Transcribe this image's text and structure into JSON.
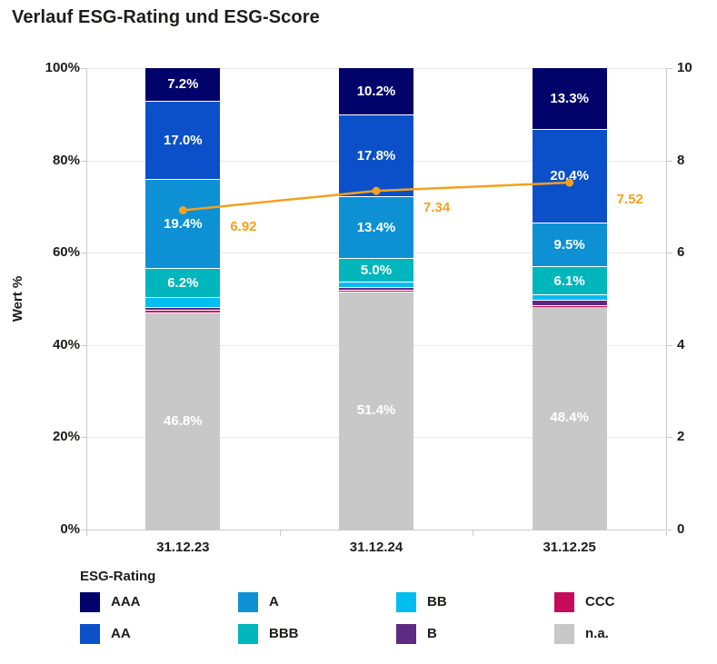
{
  "title": "Verlauf ESG-Rating und ESG-Score",
  "colors": {
    "accent_line": "#f6a01e",
    "grid": "#e8e8e8",
    "axis": "#c9c9c9",
    "text": "#1d1d1b",
    "segment_label": "#ffffff"
  },
  "chart_data": {
    "type": "bar",
    "subtype": "stacked-bars-with-line",
    "title": "Verlauf ESG-Rating und ESG-Score",
    "categories": [
      "31.12.23",
      "31.12.24",
      "31.12.25"
    ],
    "series": [
      {
        "name": "AAA",
        "color": "#02026b",
        "values": [
          7.2,
          10.2,
          13.3
        ]
      },
      {
        "name": "AA",
        "color": "#0b50c8",
        "values": [
          17.0,
          17.8,
          20.4
        ]
      },
      {
        "name": "A",
        "color": "#0e90d4",
        "values": [
          19.4,
          13.4,
          9.5
        ]
      },
      {
        "name": "BBB",
        "color": "#00b6bd",
        "values": [
          6.2,
          5.0,
          6.1
        ]
      },
      {
        "name": "BB",
        "color": "#00bdf2",
        "values": [
          2.2,
          1.2,
          1.0
        ]
      },
      {
        "name": "B",
        "color": "#5e2a84",
        "values": [
          0.6,
          0.6,
          1.2
        ]
      },
      {
        "name": "CCC",
        "color": "#c80a5a",
        "values": [
          0.6,
          0.4,
          0.1
        ]
      },
      {
        "name": "n.a.",
        "color": "#c8c8c8",
        "values": [
          46.8,
          51.4,
          48.4
        ]
      }
    ],
    "stack_order_bottom_to_top": [
      "n.a.",
      "CCC",
      "B",
      "BB",
      "BBB",
      "A",
      "AA",
      "AAA"
    ],
    "segment_label_min_pct": 5,
    "line_series": {
      "name": "ESG-Score",
      "color": "#f6a01e",
      "values": [
        6.92,
        7.34,
        7.52
      ],
      "labels": [
        "6.92",
        "7.34",
        "7.52"
      ]
    },
    "left_axis": {
      "label": "Wert %",
      "ticks": [
        "0%",
        "20%",
        "40%",
        "60%",
        "80%",
        "100%"
      ],
      "range": [
        0,
        100
      ]
    },
    "right_axis": {
      "ticks": [
        "0",
        "2",
        "4",
        "6",
        "8",
        "10"
      ],
      "range": [
        0,
        10
      ]
    },
    "legend": {
      "title": "ESG-Rating",
      "rows": [
        [
          "AAA",
          "A",
          "BB",
          "CCC"
        ],
        [
          "AA",
          "BBB",
          "B",
          "n.a."
        ]
      ]
    },
    "grid": true,
    "legend_position": "bottom"
  }
}
